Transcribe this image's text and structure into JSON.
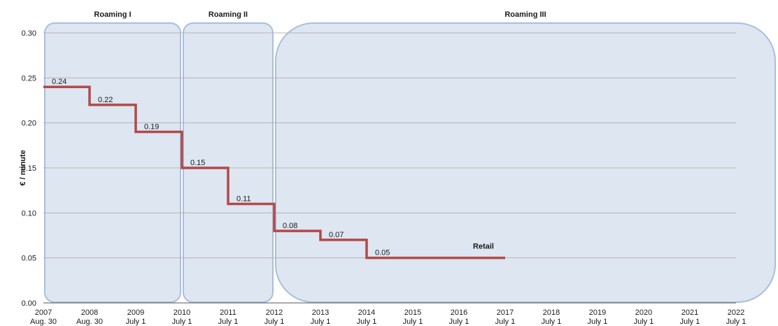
{
  "chart_data": {
    "type": "line",
    "step": true,
    "ylabel": "€ / minute",
    "ylim": [
      0,
      0.3
    ],
    "yticks": [
      "0.00",
      "0.05",
      "0.10",
      "0.15",
      "0.20",
      "0.25",
      "0.30"
    ],
    "grid": true,
    "x_ticks": [
      {
        "year": "2007",
        "date": "Aug. 30"
      },
      {
        "year": "2008",
        "date": "Aug. 30"
      },
      {
        "year": "2009",
        "date": "July 1"
      },
      {
        "year": "2010",
        "date": "July 1"
      },
      {
        "year": "2011",
        "date": "July 1"
      },
      {
        "year": "2012",
        "date": "July 1"
      },
      {
        "year": "2013",
        "date": "July 1"
      },
      {
        "year": "2014",
        "date": "July 1"
      },
      {
        "year": "2015",
        "date": "July 1"
      },
      {
        "year": "2016",
        "date": "July 1"
      },
      {
        "year": "2017",
        "date": "July 1"
      },
      {
        "year": "2018",
        "date": "July 1"
      },
      {
        "year": "2019",
        "date": "July 1"
      },
      {
        "year": "2020",
        "date": "July 1"
      },
      {
        "year": "2021",
        "date": "July 1"
      },
      {
        "year": "2022",
        "date": "July 1"
      }
    ],
    "phases": [
      {
        "label": "Roaming I",
        "from": "2007 Aug. 30",
        "to": "2010 July 1"
      },
      {
        "label": "Roaming II",
        "from": "2010 July 1",
        "to": "2012 July 1"
      },
      {
        "label": "Roaming III",
        "from": "2012 July 1",
        "to": "2022 July 1"
      }
    ],
    "series": [
      {
        "name": "Retail",
        "color": "#b24a48",
        "steps": [
          {
            "from": "2007 Aug. 30",
            "to": "2008 Aug. 30",
            "value": 0.24,
            "label": "0.24"
          },
          {
            "from": "2008 Aug. 30",
            "to": "2009 July 1",
            "value": 0.22,
            "label": "0.22"
          },
          {
            "from": "2009 July 1",
            "to": "2010 July 1",
            "value": 0.19,
            "label": "0.19"
          },
          {
            "from": "2010 July 1",
            "to": "2011 July 1",
            "value": 0.15,
            "label": "0.15"
          },
          {
            "from": "2011 July 1",
            "to": "2012 July 1",
            "value": 0.11,
            "label": "0.11"
          },
          {
            "from": "2012 July 1",
            "to": "2013 July 1",
            "value": 0.08,
            "label": "0.08"
          },
          {
            "from": "2013 July 1",
            "to": "2014 July 1",
            "value": 0.07,
            "label": "0.07"
          },
          {
            "from": "2014 July 1",
            "to": "2017 July 1",
            "value": 0.05,
            "label": "0.05"
          }
        ]
      }
    ],
    "colors": {
      "phase_fill": "#dde6f1",
      "phase_stroke": "#a9bfdc",
      "grid": "#b5b5b5",
      "axis": "#555555"
    }
  }
}
